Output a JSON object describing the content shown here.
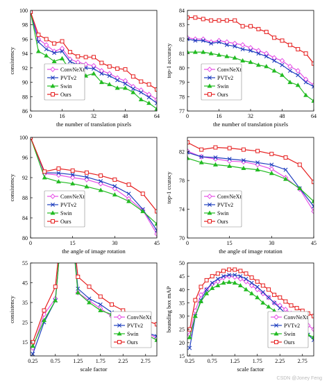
{
  "watermark": "CSDN @Joney Feng",
  "legend_names": [
    "ConvNeXt",
    "PVTv2",
    "Swin",
    "Ours"
  ],
  "series_style": [
    {
      "color": "#e64de6",
      "marker": "diamond"
    },
    {
      "color": "#1f3fbf",
      "marker": "x"
    },
    {
      "color": "#22bb22",
      "marker": "triangle"
    },
    {
      "color": "#e61e1e",
      "marker": "square"
    }
  ],
  "chart_data": [
    {
      "type": "line",
      "xlabel": "the number of translation pixels",
      "ylabel": "consistency",
      "xlim": [
        0,
        64
      ],
      "ylim": [
        86,
        100
      ],
      "xticks": [
        0,
        16,
        32,
        48,
        64
      ],
      "yticks": [
        86,
        88,
        90,
        92,
        94,
        96,
        98,
        100
      ],
      "x": [
        0,
        4,
        8,
        12,
        16,
        20,
        24,
        28,
        32,
        36,
        40,
        44,
        48,
        52,
        56,
        60,
        64
      ],
      "series": [
        {
          "name": "ConvNeXt",
          "values": [
            99.8,
            96.0,
            95.2,
            94.3,
            94.7,
            93.2,
            92.8,
            92.5,
            92.3,
            91.6,
            91.2,
            90.6,
            90.2,
            89.4,
            88.9,
            88.3,
            87.6
          ]
        },
        {
          "name": "PVTv2",
          "values": [
            99.8,
            95.6,
            94.6,
            94.1,
            94.3,
            92.9,
            92.4,
            92.0,
            91.9,
            91.2,
            90.9,
            90.3,
            89.8,
            89.1,
            88.6,
            87.9,
            87.1
          ]
        },
        {
          "name": "Swin",
          "values": [
            99.8,
            94.3,
            93.7,
            92.9,
            93.3,
            91.7,
            91.3,
            90.9,
            91.2,
            90.0,
            89.7,
            89.2,
            89.2,
            88.6,
            87.6,
            87.1,
            86.3
          ]
        },
        {
          "name": "Ours",
          "values": [
            99.8,
            96.6,
            96.0,
            95.4,
            95.7,
            94.2,
            93.6,
            93.5,
            93.5,
            92.7,
            92.2,
            91.9,
            91.8,
            90.8,
            90.1,
            89.7,
            89.0
          ]
        }
      ],
      "legend": "bottom-left"
    },
    {
      "type": "line",
      "xlabel": "the number of translation pixels",
      "ylabel": "top-1 accuracy",
      "xlim": [
        0,
        64
      ],
      "ylim": [
        77,
        84
      ],
      "xticks": [
        0,
        16,
        32,
        48,
        64
      ],
      "yticks": [
        77,
        78,
        79,
        80,
        81,
        82,
        83,
        84
      ],
      "x": [
        0,
        4,
        8,
        12,
        16,
        20,
        24,
        28,
        32,
        36,
        40,
        44,
        48,
        52,
        56,
        60,
        64
      ],
      "series": [
        {
          "name": "ConvNeXt",
          "values": [
            82.1,
            82.0,
            82.0,
            81.8,
            81.9,
            81.8,
            81.7,
            81.6,
            81.4,
            81.2,
            81.0,
            80.7,
            80.5,
            80.1,
            79.8,
            79.2,
            78.8
          ]
        },
        {
          "name": "PVTv2",
          "values": [
            82.0,
            81.9,
            81.9,
            81.7,
            81.8,
            81.6,
            81.5,
            81.3,
            81.2,
            81.0,
            80.8,
            80.5,
            80.2,
            79.8,
            79.5,
            79.0,
            78.7
          ]
        },
        {
          "name": "Swin",
          "values": [
            81.1,
            81.1,
            81.1,
            81.0,
            80.9,
            80.8,
            80.7,
            80.5,
            80.4,
            80.2,
            80.1,
            79.8,
            79.5,
            79.0,
            78.8,
            78.1,
            77.7
          ]
        },
        {
          "name": "Ours",
          "values": [
            83.5,
            83.5,
            83.4,
            83.3,
            83.3,
            83.3,
            83.3,
            82.9,
            82.9,
            82.7,
            82.5,
            82.1,
            81.9,
            81.6,
            81.3,
            81.0,
            80.3
          ]
        }
      ],
      "legend": "bottom-left"
    },
    {
      "type": "line",
      "xlabel": "the angle of image rotation",
      "ylabel": "consistency",
      "xlim": [
        0,
        45
      ],
      "ylim": [
        80,
        100
      ],
      "xticks": [
        0,
        15,
        30,
        45
      ],
      "yticks": [
        80,
        84,
        88,
        92,
        96,
        100
      ],
      "x": [
        0,
        5,
        10,
        15,
        20,
        25,
        30,
        35,
        40,
        45
      ],
      "series": [
        {
          "name": "ConvNeXt",
          "values": [
            100,
            92.8,
            92.5,
            92.0,
            91.6,
            90.8,
            89.8,
            87.8,
            85.5,
            80.8
          ]
        },
        {
          "name": "PVTv2",
          "values": [
            100,
            93.0,
            92.9,
            92.6,
            92.1,
            91.3,
            90.3,
            88.8,
            85.7,
            81.5
          ]
        },
        {
          "name": "Swin",
          "values": [
            100,
            92.0,
            91.2,
            90.8,
            90.2,
            89.5,
            88.6,
            87.3,
            85.3,
            82.8
          ]
        },
        {
          "name": "Ours",
          "values": [
            100,
            93.2,
            93.8,
            93.4,
            93.0,
            92.4,
            91.6,
            90.6,
            88.8,
            85.3
          ]
        }
      ],
      "legend": "bottom-left"
    },
    {
      "type": "line",
      "xlabel": "the angle of image rotation",
      "ylabel": "top-1 ccuracy",
      "xlim": [
        0,
        45
      ],
      "ylim": [
        70,
        84
      ],
      "xticks": [
        0,
        15,
        30,
        45
      ],
      "yticks": [
        70,
        74,
        78,
        82
      ],
      "x": [
        0,
        5,
        10,
        15,
        20,
        25,
        30,
        35,
        40,
        45
      ],
      "series": [
        {
          "name": "ConvNeXt",
          "values": [
            82.1,
            81.3,
            81.0,
            80.7,
            80.6,
            80.2,
            79.6,
            78.4,
            76.8,
            73.7
          ]
        },
        {
          "name": "PVTv2",
          "values": [
            81.9,
            81.3,
            81.2,
            81.0,
            80.8,
            80.5,
            80.2,
            79.5,
            76.9,
            74.4
          ]
        },
        {
          "name": "Swin",
          "values": [
            81.1,
            80.5,
            80.2,
            80.0,
            79.7,
            79.5,
            79.0,
            78.2,
            76.9,
            75.1
          ]
        },
        {
          "name": "Ours",
          "values": [
            83.3,
            82.3,
            82.6,
            82.5,
            82.3,
            82.1,
            81.7,
            81.2,
            80.2,
            77.8
          ]
        }
      ],
      "legend": "bottom-left"
    },
    {
      "type": "line",
      "xlabel": "scale factor",
      "ylabel": "consistency",
      "xlim": [
        0.2,
        3.0
      ],
      "ylim": [
        8,
        55
      ],
      "xticks": [
        0.25,
        0.75,
        1.25,
        1.75,
        2.25,
        2.75
      ],
      "yticks": [
        15,
        25,
        35,
        45,
        55
      ],
      "x": [
        0.25,
        0.5,
        0.75,
        1.0,
        1.25,
        1.5,
        1.75,
        2.0,
        2.25,
        2.5,
        2.75,
        3.0
      ],
      "series": [
        {
          "name": "ConvNeXt",
          "values": [
            12,
            29,
            37,
            100,
            40,
            36,
            32,
            28,
            25,
            22,
            20,
            17
          ]
        },
        {
          "name": "PVTv2",
          "values": [
            9,
            25,
            36,
            100,
            42,
            37,
            34,
            30,
            26,
            23,
            20,
            18
          ]
        },
        {
          "name": "Swin",
          "values": [
            13,
            26,
            36,
            100,
            40,
            35,
            31,
            29,
            25,
            21,
            19,
            16
          ]
        },
        {
          "name": "Ours",
          "values": [
            15,
            31,
            43,
            100,
            48,
            43,
            38,
            34,
            31,
            28,
            26,
            24
          ]
        }
      ],
      "legend": "bottom-right"
    },
    {
      "type": "line",
      "xlabel": "scale factor",
      "ylabel": "bounding box mAP",
      "xlim": [
        0.2,
        3.0
      ],
      "ylim": [
        15,
        50
      ],
      "xticks": [
        0.25,
        0.75,
        1.25,
        1.75,
        2.25,
        2.75
      ],
      "yticks": [
        15,
        20,
        25,
        30,
        35,
        40,
        45,
        50
      ],
      "x": [
        0.25,
        0.375,
        0.5,
        0.625,
        0.75,
        0.875,
        1.0,
        1.125,
        1.25,
        1.375,
        1.5,
        1.625,
        1.75,
        1.875,
        2.0,
        2.125,
        2.25,
        2.375,
        2.5,
        2.625,
        2.75,
        2.875,
        3.0
      ],
      "series": [
        {
          "name": "ConvNeXt",
          "values": [
            23,
            32,
            38,
            40,
            42,
            43,
            44.5,
            45,
            44.7,
            44,
            43,
            41.5,
            40,
            38.5,
            37,
            35,
            34,
            32.5,
            31,
            29.5,
            28,
            26.5,
            25
          ]
        },
        {
          "name": "PVTv2",
          "values": [
            18,
            30,
            36,
            40,
            42.5,
            44,
            45,
            45.5,
            45.5,
            45,
            44,
            42.5,
            41,
            39,
            37,
            35,
            33,
            31,
            29,
            27,
            25,
            23,
            21
          ]
        },
        {
          "name": "Swin",
          "values": [
            22,
            30,
            35.5,
            38.5,
            40.5,
            41.5,
            42.5,
            42.8,
            42.5,
            41.5,
            40,
            38.5,
            37,
            35,
            33.5,
            32,
            30,
            28.5,
            27,
            25.5,
            24,
            23,
            22
          ]
        },
        {
          "name": "Ours",
          "values": [
            25,
            36,
            41,
            43.5,
            45,
            46,
            47,
            47.5,
            47.5,
            47,
            46,
            44.5,
            43,
            41.5,
            40,
            38,
            37,
            35.5,
            34,
            33,
            32,
            31,
            30
          ]
        }
      ],
      "legend": "center-right"
    }
  ]
}
